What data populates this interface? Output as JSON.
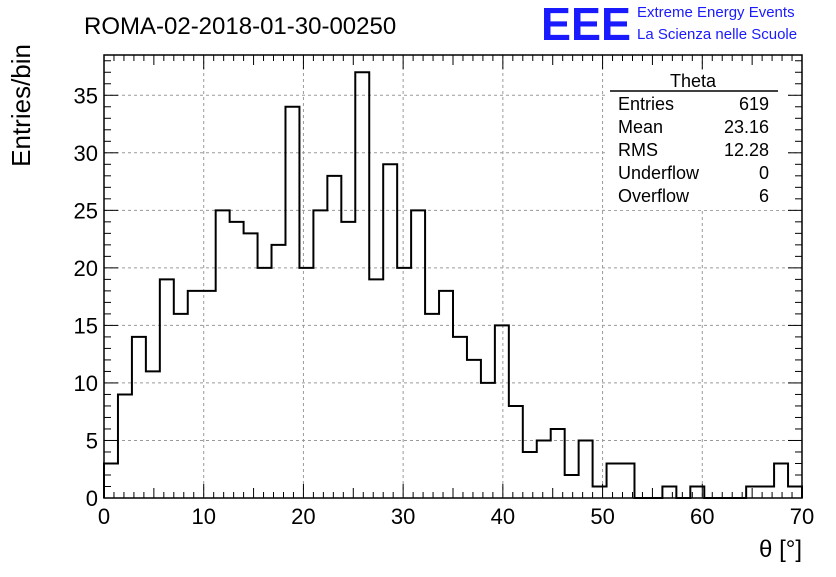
{
  "header": {
    "run_title": "ROMA-02-2018-01-30-00250",
    "logo_text": "EEE",
    "brand_line1": "Extreme Energy Events",
    "brand_line2": "La Scienza nelle Scuole",
    "brand_color": "#1a1aff"
  },
  "stats_box": {
    "title": "Theta",
    "rows": [
      {
        "label": "Entries",
        "value": "619"
      },
      {
        "label": "Mean",
        "value": "23.16"
      },
      {
        "label": "RMS",
        "value": "12.28"
      },
      {
        "label": "Underflow",
        "value": "0"
      },
      {
        "label": "Overflow",
        "value": "6"
      }
    ]
  },
  "chart_data": {
    "type": "bar",
    "style": "step-histogram",
    "xlabel": "θ [°]",
    "ylabel": "Entries/bin",
    "xlim": [
      0,
      70
    ],
    "ylim": [
      0,
      38.5
    ],
    "grid": true,
    "bin_width": 1.4,
    "bin_edges_start": 0,
    "values": [
      3,
      9,
      14,
      11,
      19,
      16,
      18,
      18,
      25,
      24,
      23,
      20,
      22,
      34,
      20,
      25,
      28,
      24,
      37,
      19,
      29,
      20,
      25,
      16,
      18,
      14,
      12,
      10,
      15,
      8,
      4,
      5,
      6,
      2,
      5,
      1,
      3,
      3,
      0,
      0,
      1,
      0,
      1,
      0,
      0,
      0,
      1,
      1,
      3,
      1
    ],
    "x_ticks": [
      0,
      10,
      20,
      30,
      40,
      50,
      60,
      70
    ],
    "y_ticks": [
      0,
      5,
      10,
      15,
      20,
      25,
      30,
      35
    ],
    "line_color": "#000000"
  }
}
